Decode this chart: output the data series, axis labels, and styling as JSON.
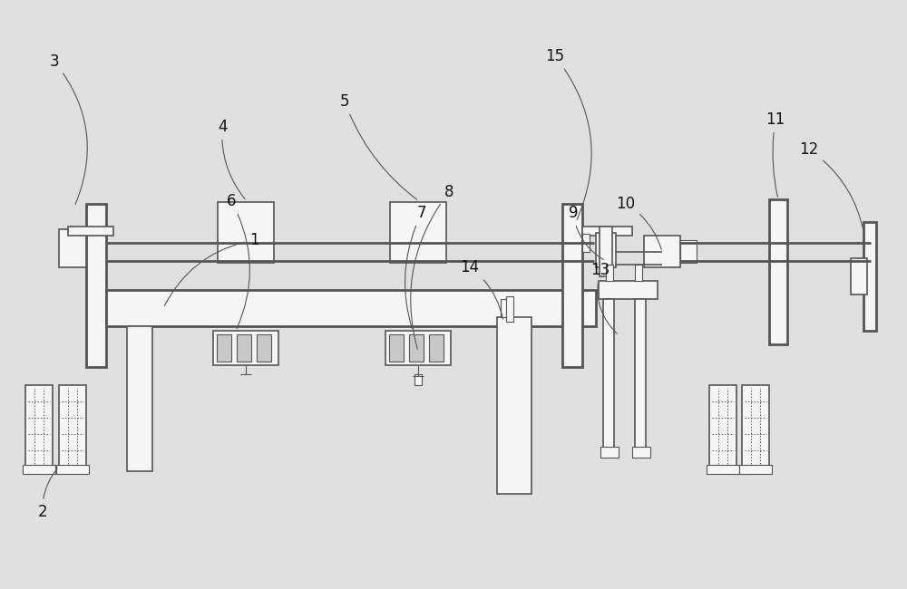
{
  "bg_color": "#e0e0e0",
  "line_color": "#555555",
  "fill_light": "#f5f5f5",
  "fill_gray": "#c8c8c8",
  "lw_thin": 0.8,
  "lw_med": 1.2,
  "lw_thick": 2.0,
  "label_fs": 12
}
